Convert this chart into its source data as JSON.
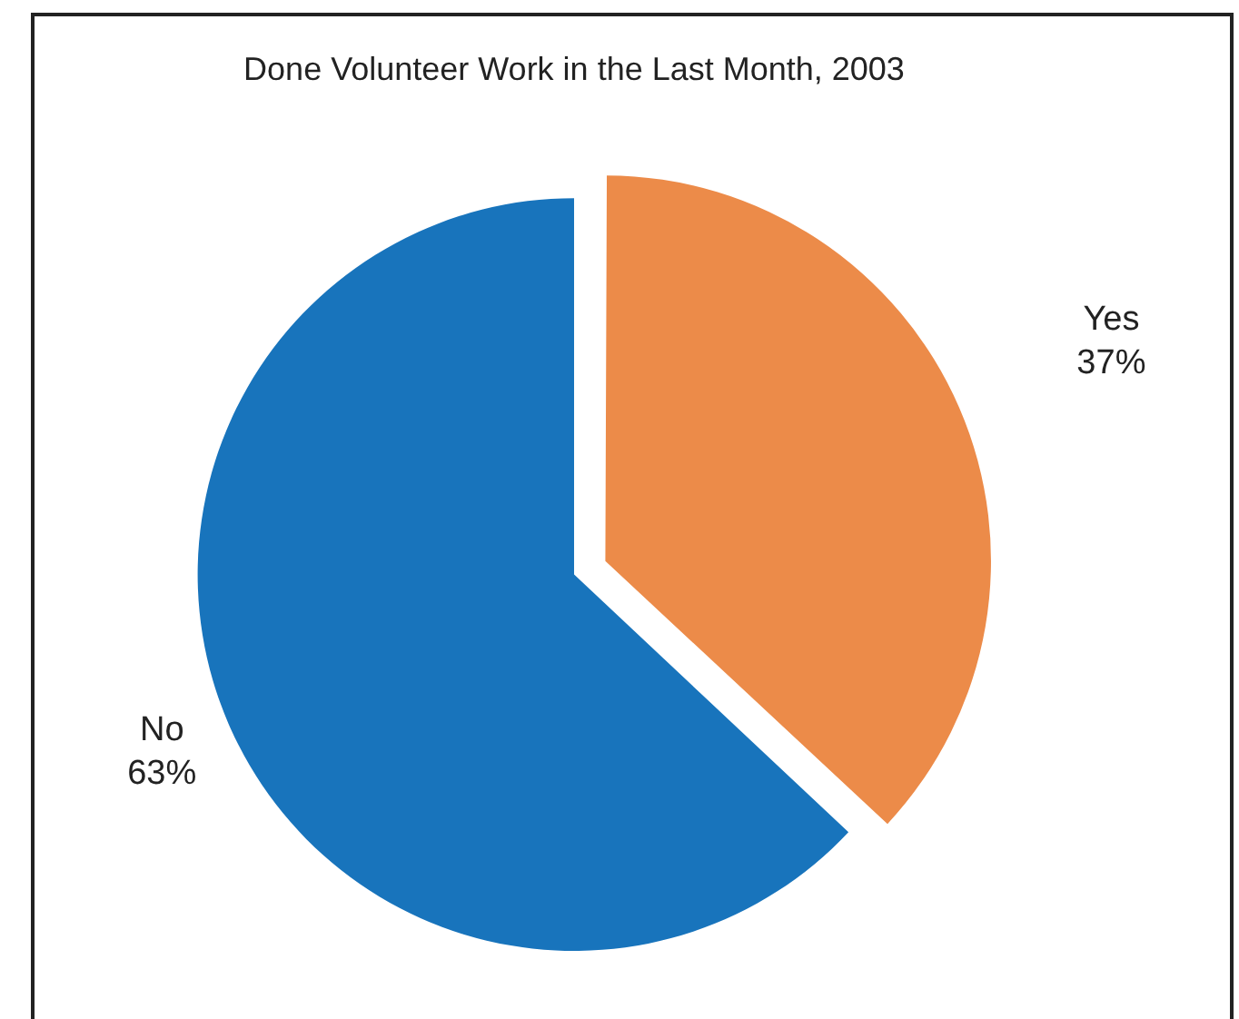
{
  "chart_data": {
    "type": "pie",
    "title": "Done Volunteer Work in the Last Month, 2003",
    "categories": [
      "Yes",
      "No"
    ],
    "values": [
      37,
      63
    ],
    "colors": [
      "#ec8b49",
      "#1874bc"
    ],
    "value_labels": [
      "37%",
      "63%"
    ],
    "legend": false
  }
}
